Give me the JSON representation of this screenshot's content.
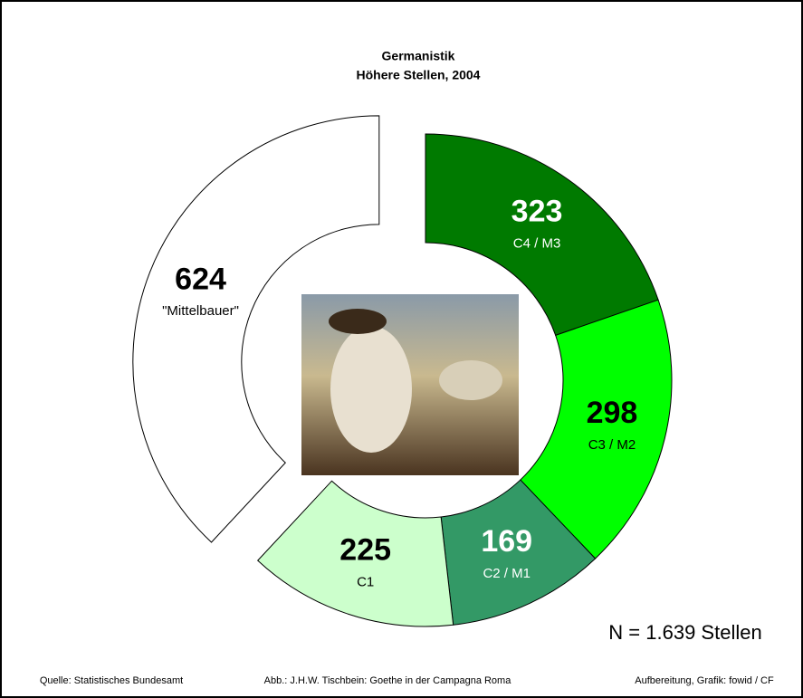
{
  "chart_data": {
    "type": "donut",
    "title": "Germanistik",
    "subtitle": "Höhere Stellen, 2004",
    "categories": [
      "C4 / M3",
      "C3 / M2",
      "C2 / M1",
      "C1",
      "\"Mittelbauer\""
    ],
    "values": [
      323,
      298,
      169,
      225,
      624
    ],
    "colors": [
      "#007a00",
      "#00ff00",
      "#339966",
      "#ccffcc",
      "#ffffff"
    ],
    "value_label_colors": [
      "#ffffff",
      "#000000",
      "#ffffff",
      "#000000",
      "#000000"
    ],
    "exploded": [
      false,
      false,
      false,
      false,
      true
    ],
    "annotation": "N = 1.639 Stellen",
    "source": "Quelle: Statistisches Bundesamt",
    "image_credit": "Abb.: J.H.W. Tischbein: Goethe in der Campagna Roma",
    "credit": "Aufbereitung, Grafik: fowid / CF"
  }
}
